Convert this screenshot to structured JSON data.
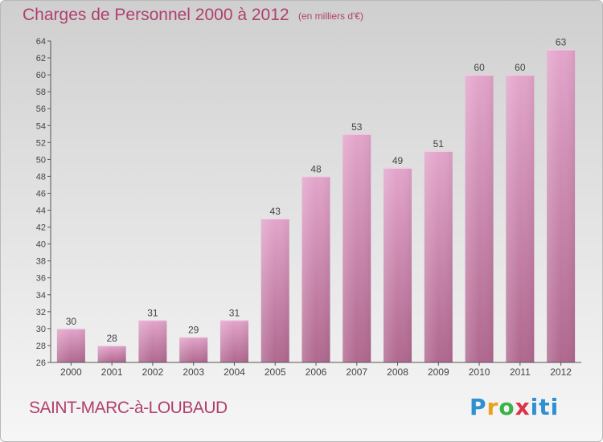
{
  "header": {
    "title": "Charges de Personnel 2000 à 2012",
    "subtitle": "(en milliers d'€)"
  },
  "footer": {
    "commune": "SAINT-MARC-à-LOUBAUD",
    "brand": "Proxiti"
  },
  "colors": {
    "bar_top": "#e3a5cb",
    "bar_bottom": "#b0688f",
    "title": "#b0406e",
    "axis": "#555555"
  },
  "chart_data": {
    "type": "bar",
    "title": "Charges de Personnel 2000 à 2012",
    "subtitle": "(en milliers d'€)",
    "xlabel": "",
    "ylabel": "",
    "categories": [
      "2000",
      "2001",
      "2002",
      "2003",
      "2004",
      "2005",
      "2006",
      "2007",
      "2008",
      "2009",
      "2010",
      "2011",
      "2012"
    ],
    "values": [
      30,
      28,
      31,
      29,
      31,
      43,
      48,
      53,
      49,
      51,
      60,
      60,
      63
    ],
    "ylim": [
      26,
      64
    ],
    "yticks": [
      26,
      28,
      30,
      32,
      34,
      36,
      38,
      40,
      42,
      44,
      46,
      48,
      50,
      52,
      54,
      56,
      58,
      60,
      62,
      64
    ],
    "grid": false,
    "data_labels": true
  }
}
